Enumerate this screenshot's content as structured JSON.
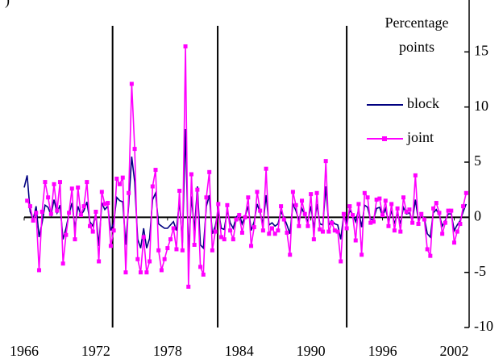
{
  "chart_data": {
    "type": "line",
    "panel_label": ")",
    "y_axis_label": [
      "Percentage",
      "points"
    ],
    "x": [
      1966,
      1966.25,
      1966.5,
      1966.75,
      1967,
      1967.25,
      1967.5,
      1967.75,
      1968,
      1968.25,
      1968.5,
      1968.75,
      1969,
      1969.25,
      1969.5,
      1969.75,
      1970,
      1970.25,
      1970.5,
      1970.75,
      1971,
      1971.25,
      1971.5,
      1971.75,
      1972,
      1972.25,
      1972.5,
      1972.75,
      1973,
      1973.25,
      1973.5,
      1973.75,
      1974,
      1974.25,
      1974.5,
      1974.75,
      1975,
      1975.25,
      1975.5,
      1975.75,
      1976,
      1976.25,
      1976.5,
      1976.75,
      1977,
      1977.25,
      1977.5,
      1977.75,
      1978,
      1978.25,
      1978.5,
      1978.75,
      1979,
      1979.25,
      1979.5,
      1979.75,
      1980,
      1980.25,
      1980.5,
      1980.75,
      1981,
      1981.25,
      1981.5,
      1981.75,
      1982,
      1982.25,
      1982.5,
      1982.75,
      1983,
      1983.25,
      1983.5,
      1983.75,
      1984,
      1984.25,
      1984.5,
      1984.75,
      1985,
      1985.25,
      1985.5,
      1985.75,
      1986,
      1986.25,
      1986.5,
      1986.75,
      1987,
      1987.25,
      1987.5,
      1987.75,
      1988,
      1988.25,
      1988.5,
      1988.75,
      1989,
      1989.25,
      1989.5,
      1989.75,
      1990,
      1990.25,
      1990.5,
      1990.75,
      1991,
      1991.25,
      1991.5,
      1991.75,
      1992,
      1992.25,
      1992.5,
      1992.75,
      1993,
      1993.25,
      1993.5,
      1993.75,
      1994,
      1994.25,
      1994.5,
      1994.75,
      1995,
      1995.25,
      1995.5,
      1995.75,
      1996,
      1996.25,
      1996.5,
      1996.75,
      1997,
      1997.25,
      1997.5,
      1997.75,
      1998,
      1998.25,
      1998.5,
      1998.75,
      1999,
      1999.25,
      1999.5,
      1999.75,
      2000,
      2000.25,
      2000.5,
      2000.75,
      2001,
      2001.25,
      2001.5,
      2001.75,
      2002,
      2002.25,
      2002.5,
      2002.75,
      2003
    ],
    "series": [
      {
        "name": "block",
        "color": "#000080",
        "markers": false,
        "values": [
          2.7,
          3.8,
          0.5,
          -0.2,
          1.0,
          -1.8,
          -0.5,
          1.1,
          0.9,
          0.2,
          1.6,
          0.4,
          1.1,
          -2.0,
          -1.0,
          0.3,
          1.3,
          -1.0,
          1.0,
          0.2,
          0.6,
          1.4,
          -0.4,
          -0.8,
          0.4,
          -2.6,
          1.3,
          0.7,
          1.0,
          -1.2,
          -0.5,
          1.8,
          1.5,
          1.4,
          -2.5,
          1.2,
          5.5,
          3.2,
          -2.0,
          -2.8,
          -1.0,
          -2.8,
          -1.9,
          1.6,
          2.2,
          -0.6,
          -0.8,
          -1.0,
          -1.0,
          -0.7,
          -0.4,
          -1.2,
          1.5,
          -2.3,
          8.0,
          -3.2,
          1.9,
          -1.2,
          2.8,
          -2.5,
          -2.8,
          1.0,
          2.0,
          -1.5,
          -0.8,
          0.7,
          -1.0,
          -1.1,
          0.6,
          -0.5,
          -1.0,
          0.0,
          0.3,
          -0.6,
          0.1,
          1.0,
          -1.2,
          -0.4,
          1.2,
          0.4,
          -0.6,
          2.0,
          -0.7,
          -0.5,
          -0.8,
          -0.6,
          0.5,
          0.0,
          -0.7,
          -1.5,
          1.2,
          0.6,
          -0.3,
          0.8,
          0.2,
          -0.4,
          1.0,
          -1.0,
          1.2,
          -0.6,
          -0.7,
          2.8,
          -0.7,
          -0.3,
          -0.6,
          -0.7,
          -2.0,
          0.2,
          -0.5,
          0.6,
          0.3,
          -0.4,
          0.7,
          -0.9,
          1.1,
          0.9,
          -0.2,
          -0.2,
          0.8,
          0.9,
          0.1,
          0.8,
          -0.4,
          0.6,
          -0.6,
          0.4,
          -0.6,
          0.9,
          0.3,
          0.4,
          -0.3,
          1.6,
          -0.3,
          0.2,
          -0.1,
          -1.5,
          -1.8,
          0.4,
          0.7,
          0.2,
          -0.8,
          -0.3,
          0.3,
          0.3,
          -1.2,
          -0.7,
          -0.3,
          0.5,
          1.2
        ]
      },
      {
        "name": "joint",
        "color": "#ff00ff",
        "markers": true,
        "values": [
          null,
          1.5,
          1.0,
          -0.3,
          0.4,
          -4.8,
          0.5,
          3.2,
          1.8,
          0.3,
          3.0,
          0.6,
          3.2,
          -4.2,
          -1.6,
          0.4,
          2.6,
          -2.0,
          2.7,
          0.2,
          1.0,
          3.2,
          -0.8,
          -1.3,
          0.5,
          -4.0,
          2.3,
          1.2,
          1.3,
          -2.6,
          -1.2,
          3.5,
          3.0,
          3.6,
          -5.0,
          2.2,
          12.1,
          6.2,
          -3.8,
          -5.0,
          -1.8,
          -5.0,
          -4.0,
          2.8,
          4.3,
          -3.0,
          -4.8,
          -3.8,
          -2.8,
          -2.0,
          -1.0,
          -2.9,
          2.4,
          -3.0,
          15.5,
          -6.3,
          3.9,
          -2.5,
          2.5,
          -4.5,
          -5.2,
          1.8,
          4.1,
          -3.0,
          -1.3,
          1.2,
          -1.8,
          -2.0,
          1.1,
          -1.2,
          -2.0,
          -0.2,
          0.2,
          -1.4,
          0.0,
          1.8,
          -2.6,
          -0.9,
          2.3,
          0.6,
          -1.2,
          4.4,
          -1.5,
          -1.0,
          -1.5,
          -1.2,
          1.0,
          -0.2,
          -1.4,
          -3.4,
          2.3,
          1.1,
          -0.8,
          1.5,
          0.3,
          -0.8,
          2.1,
          -2.0,
          2.2,
          -1.1,
          -1.3,
          5.1,
          -1.3,
          -0.5,
          -1.2,
          -1.3,
          -4.0,
          0.3,
          -1.0,
          1.0,
          0.2,
          -2.1,
          1.2,
          -3.4,
          2.2,
          1.8,
          -0.5,
          -0.4,
          1.6,
          1.7,
          0.2,
          1.5,
          -0.8,
          1.2,
          -1.2,
          0.8,
          -1.3,
          1.8,
          0.5,
          0.7,
          -0.5,
          3.8,
          -0.6,
          0.3,
          -0.2,
          -2.9,
          -3.5,
          0.8,
          1.3,
          0.4,
          -1.5,
          -0.5,
          0.6,
          0.6,
          -2.3,
          -1.3,
          -0.6,
          1.0,
          2.2
        ]
      }
    ],
    "xlim": [
      1966,
      2003.25
    ],
    "xticks": [
      1966,
      1972,
      1978,
      1984,
      1990,
      1996,
      2002
    ],
    "ylim": [
      -10,
      20
    ],
    "yticks": [
      -10,
      -5,
      0,
      5,
      10,
      15,
      20
    ],
    "vertical_lines": [
      1973.4,
      1982.2,
      1993.0
    ]
  }
}
